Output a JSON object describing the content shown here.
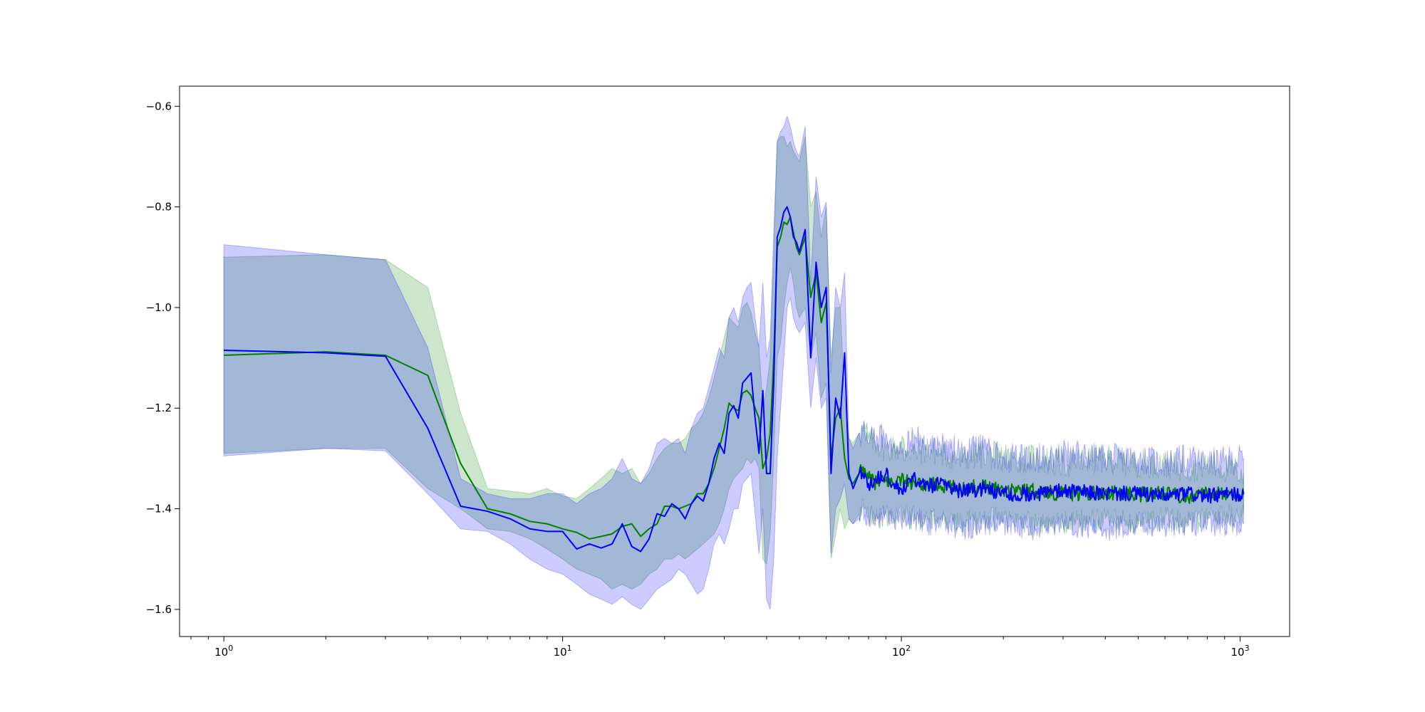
{
  "chart_data": {
    "type": "line",
    "title": "",
    "xlabel": "",
    "ylabel": "",
    "xscale": "log",
    "xlim": [
      0.74,
      1400
    ],
    "ylim": [
      -1.654,
      -0.56
    ],
    "grid": false,
    "legend": "none",
    "x_ticks": [
      {
        "value": 1,
        "base": "10",
        "exp": "0"
      },
      {
        "value": 10,
        "base": "10",
        "exp": "1"
      },
      {
        "value": 100,
        "base": "10",
        "exp": "2"
      },
      {
        "value": 1000,
        "base": "10",
        "exp": "3"
      }
    ],
    "y_ticks": [
      {
        "value": -0.6,
        "label": "−0.6"
      },
      {
        "value": -0.8,
        "label": "−0.8"
      },
      {
        "value": -1.0,
        "label": "−1.0"
      },
      {
        "value": -1.2,
        "label": "−1.2"
      },
      {
        "value": -1.4,
        "label": "−1.4"
      },
      {
        "value": -1.6,
        "label": "−1.6"
      }
    ],
    "series": [
      {
        "color": "#008000",
        "band_color": "#008000",
        "band_opacity": 0.2,
        "x": [
          1,
          2,
          3,
          4,
          5,
          6,
          7,
          8,
          9,
          10,
          11,
          12,
          13,
          14,
          15,
          16,
          17,
          18,
          19,
          20,
          21,
          22,
          23,
          24,
          25,
          26,
          27,
          28,
          29,
          30,
          31,
          32,
          33,
          34,
          35,
          36,
          37,
          38,
          39,
          40,
          41,
          42,
          43,
          44,
          45,
          46,
          47,
          48,
          49,
          50,
          52,
          54,
          56,
          58,
          60,
          62,
          64,
          66,
          68,
          70,
          72,
          75,
          78,
          80,
          85,
          90,
          95,
          100,
          110,
          120,
          130,
          150,
          175,
          200,
          250,
          300,
          400,
          500,
          600,
          700,
          800,
          1024
        ],
        "values": [
          -1.095,
          -1.088,
          -1.095,
          -1.135,
          -1.31,
          -1.4,
          -1.41,
          -1.425,
          -1.43,
          -1.44,
          -1.447,
          -1.46,
          -1.455,
          -1.45,
          -1.435,
          -1.43,
          -1.455,
          -1.44,
          -1.43,
          -1.395,
          -1.395,
          -1.4,
          -1.395,
          -1.39,
          -1.37,
          -1.37,
          -1.35,
          -1.32,
          -1.28,
          -1.24,
          -1.19,
          -1.2,
          -1.205,
          -1.17,
          -1.165,
          -1.175,
          -1.2,
          -1.22,
          -1.32,
          -1.3,
          -1.25,
          -1.1,
          -0.88,
          -0.86,
          -0.83,
          -0.835,
          -0.82,
          -0.85,
          -0.88,
          -0.895,
          -0.86,
          -0.98,
          -0.93,
          -1.03,
          -0.99,
          -1.3,
          -1.22,
          -1.2,
          -1.3,
          -1.34,
          -1.35,
          -1.33,
          -1.32,
          -1.34,
          -1.35,
          -1.345,
          -1.35,
          -1.34,
          -1.355,
          -1.35,
          -1.355,
          -1.36,
          -1.355,
          -1.36,
          -1.365,
          -1.37,
          -1.368,
          -1.372,
          -1.37,
          -1.375,
          -1.37,
          -1.372
        ],
        "lower": [
          -1.29,
          -1.28,
          -1.28,
          -1.36,
          -1.4,
          -1.44,
          -1.445,
          -1.46,
          -1.48,
          -1.5,
          -1.52,
          -1.53,
          -1.54,
          -1.56,
          -1.55,
          -1.56,
          -1.55,
          -1.53,
          -1.52,
          -1.5,
          -1.5,
          -1.49,
          -1.5,
          -1.49,
          -1.48,
          -1.47,
          -1.46,
          -1.45,
          -1.43,
          -1.4,
          -1.36,
          -1.34,
          -1.33,
          -1.32,
          -1.3,
          -1.31,
          -1.3,
          -1.32,
          -1.5,
          -1.51,
          -1.45,
          -1.3,
          -1.1,
          -1.07,
          -1.0,
          -0.95,
          -0.92,
          -0.95,
          -1.0,
          -1.02,
          -1.0,
          -1.1,
          -1.05,
          -1.18,
          -1.15,
          -1.5,
          -1.45,
          -1.4,
          -1.44,
          -1.42,
          -1.43,
          -1.41,
          -1.4,
          -1.42,
          -1.42,
          -1.41,
          -1.42,
          -1.41,
          -1.42,
          -1.42,
          -1.42,
          -1.43,
          -1.42,
          -1.42,
          -1.43,
          -1.43,
          -1.42,
          -1.43,
          -1.42,
          -1.43,
          -1.42,
          -1.41
        ],
        "upper": [
          -0.9,
          -0.895,
          -0.905,
          -0.96,
          -1.21,
          -1.36,
          -1.365,
          -1.37,
          -1.36,
          -1.375,
          -1.38,
          -1.36,
          -1.34,
          -1.32,
          -1.33,
          -1.32,
          -1.35,
          -1.33,
          -1.3,
          -1.28,
          -1.27,
          -1.27,
          -1.26,
          -1.24,
          -1.23,
          -1.21,
          -1.18,
          -1.14,
          -1.1,
          -1.06,
          -1.02,
          -1.03,
          -1.04,
          -1.0,
          -0.99,
          -1.01,
          -1.05,
          -1.08,
          -1.2,
          -1.16,
          -1.1,
          -0.9,
          -0.67,
          -0.66,
          -0.66,
          -0.68,
          -0.67,
          -0.69,
          -0.7,
          -0.71,
          -0.66,
          -0.8,
          -0.77,
          -0.86,
          -0.8,
          -1.1,
          -1.0,
          -1.0,
          -1.18,
          -1.26,
          -1.27,
          -1.25,
          -1.24,
          -1.26,
          -1.27,
          -1.28,
          -1.28,
          -1.27,
          -1.29,
          -1.28,
          -1.29,
          -1.3,
          -1.29,
          -1.3,
          -1.3,
          -1.31,
          -1.3,
          -1.31,
          -1.31,
          -1.32,
          -1.31,
          -1.33
        ]
      },
      {
        "color": "#0000ff",
        "band_color": "#0000ff",
        "band_opacity": 0.2,
        "x": [
          1,
          2,
          3,
          4,
          5,
          6,
          7,
          8,
          9,
          10,
          11,
          12,
          13,
          14,
          15,
          16,
          17,
          18,
          19,
          20,
          21,
          22,
          23,
          24,
          25,
          26,
          27,
          28,
          29,
          30,
          31,
          32,
          33,
          34,
          35,
          36,
          37,
          38,
          39,
          40,
          41,
          42,
          43,
          44,
          45,
          46,
          47,
          48,
          49,
          50,
          52,
          54,
          56,
          58,
          60,
          62,
          64,
          66,
          68,
          70,
          72,
          75,
          78,
          80,
          85,
          90,
          95,
          100,
          110,
          120,
          130,
          150,
          175,
          200,
          250,
          300,
          400,
          500,
          600,
          700,
          800,
          1024
        ],
        "values": [
          -1.085,
          -1.09,
          -1.097,
          -1.24,
          -1.395,
          -1.405,
          -1.42,
          -1.44,
          -1.445,
          -1.445,
          -1.48,
          -1.47,
          -1.478,
          -1.47,
          -1.43,
          -1.475,
          -1.485,
          -1.46,
          -1.41,
          -1.415,
          -1.39,
          -1.4,
          -1.42,
          -1.39,
          -1.375,
          -1.385,
          -1.35,
          -1.3,
          -1.27,
          -1.29,
          -1.21,
          -1.195,
          -1.22,
          -1.15,
          -1.14,
          -1.13,
          -1.22,
          -1.29,
          -1.165,
          -1.33,
          -1.33,
          -1.15,
          -0.86,
          -0.84,
          -0.81,
          -0.8,
          -0.82,
          -0.86,
          -0.87,
          -0.89,
          -0.845,
          -1.1,
          -0.91,
          -1.0,
          -0.96,
          -1.33,
          -1.18,
          -1.22,
          -1.09,
          -1.33,
          -1.36,
          -1.33,
          -1.33,
          -1.35,
          -1.34,
          -1.33,
          -1.35,
          -1.36,
          -1.34,
          -1.355,
          -1.35,
          -1.365,
          -1.36,
          -1.37,
          -1.37,
          -1.365,
          -1.37,
          -1.37,
          -1.375,
          -1.37,
          -1.375,
          -1.37
        ],
        "lower": [
          -1.295,
          -1.28,
          -1.285,
          -1.37,
          -1.44,
          -1.445,
          -1.47,
          -1.5,
          -1.52,
          -1.53,
          -1.55,
          -1.57,
          -1.58,
          -1.59,
          -1.575,
          -1.59,
          -1.6,
          -1.58,
          -1.56,
          -1.55,
          -1.54,
          -1.52,
          -1.53,
          -1.55,
          -1.57,
          -1.56,
          -1.52,
          -1.47,
          -1.45,
          -1.47,
          -1.44,
          -1.4,
          -1.4,
          -1.35,
          -1.34,
          -1.33,
          -1.41,
          -1.49,
          -1.4,
          -1.58,
          -1.6,
          -1.5,
          -1.3,
          -1.2,
          -1.1,
          -1.0,
          -0.98,
          -1.02,
          -1.04,
          -1.05,
          -1.03,
          -1.2,
          -1.1,
          -1.2,
          -1.18,
          -1.49,
          -1.4,
          -1.38,
          -1.35,
          -1.42,
          -1.43,
          -1.42,
          -1.41,
          -1.42,
          -1.42,
          -1.41,
          -1.42,
          -1.43,
          -1.42,
          -1.43,
          -1.42,
          -1.44,
          -1.43,
          -1.43,
          -1.44,
          -1.43,
          -1.44,
          -1.43,
          -1.44,
          -1.43,
          -1.43,
          -1.43
        ],
        "upper": [
          -0.875,
          -0.895,
          -0.905,
          -1.08,
          -1.34,
          -1.37,
          -1.38,
          -1.38,
          -1.37,
          -1.37,
          -1.39,
          -1.37,
          -1.36,
          -1.34,
          -1.3,
          -1.34,
          -1.35,
          -1.32,
          -1.27,
          -1.26,
          -1.27,
          -1.26,
          -1.29,
          -1.24,
          -1.21,
          -1.2,
          -1.16,
          -1.12,
          -1.08,
          -1.1,
          -1.02,
          -1.0,
          -1.03,
          -0.98,
          -0.96,
          -0.95,
          -1.02,
          -1.08,
          -0.95,
          -1.1,
          -1.06,
          -0.85,
          -0.67,
          -0.65,
          -0.64,
          -0.62,
          -0.64,
          -0.67,
          -0.69,
          -0.7,
          -0.64,
          -0.95,
          -0.74,
          -0.82,
          -0.79,
          -1.13,
          -0.96,
          -1.0,
          -0.93,
          -1.26,
          -1.28,
          -1.25,
          -1.25,
          -1.27,
          -1.26,
          -1.25,
          -1.27,
          -1.28,
          -1.26,
          -1.28,
          -1.27,
          -1.29,
          -1.28,
          -1.3,
          -1.3,
          -1.29,
          -1.3,
          -1.3,
          -1.31,
          -1.3,
          -1.31,
          -1.3
        ]
      }
    ]
  }
}
